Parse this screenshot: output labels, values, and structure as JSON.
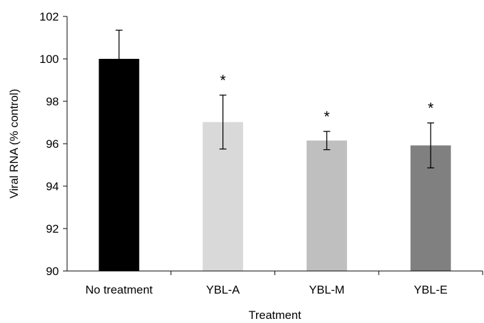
{
  "chart_data": {
    "type": "bar",
    "categories": [
      "No treatment",
      "YBL-A",
      "YBL-M",
      "YBL-E"
    ],
    "values": [
      100,
      97.02,
      96.15,
      95.92
    ],
    "error": [
      1.35,
      1.27,
      0.43,
      1.06
    ],
    "significance": [
      "",
      "*",
      "*",
      "*"
    ],
    "bar_colors": [
      "#000000",
      "#d9d9d9",
      "#bfbfbf",
      "#808080"
    ],
    "xlabel": "Treatment",
    "ylabel": "Viral RNA (% control)",
    "ylim": [
      90,
      102
    ],
    "yticks": [
      90,
      92,
      94,
      96,
      98,
      100,
      102
    ],
    "grid": false,
    "legend": "none"
  }
}
